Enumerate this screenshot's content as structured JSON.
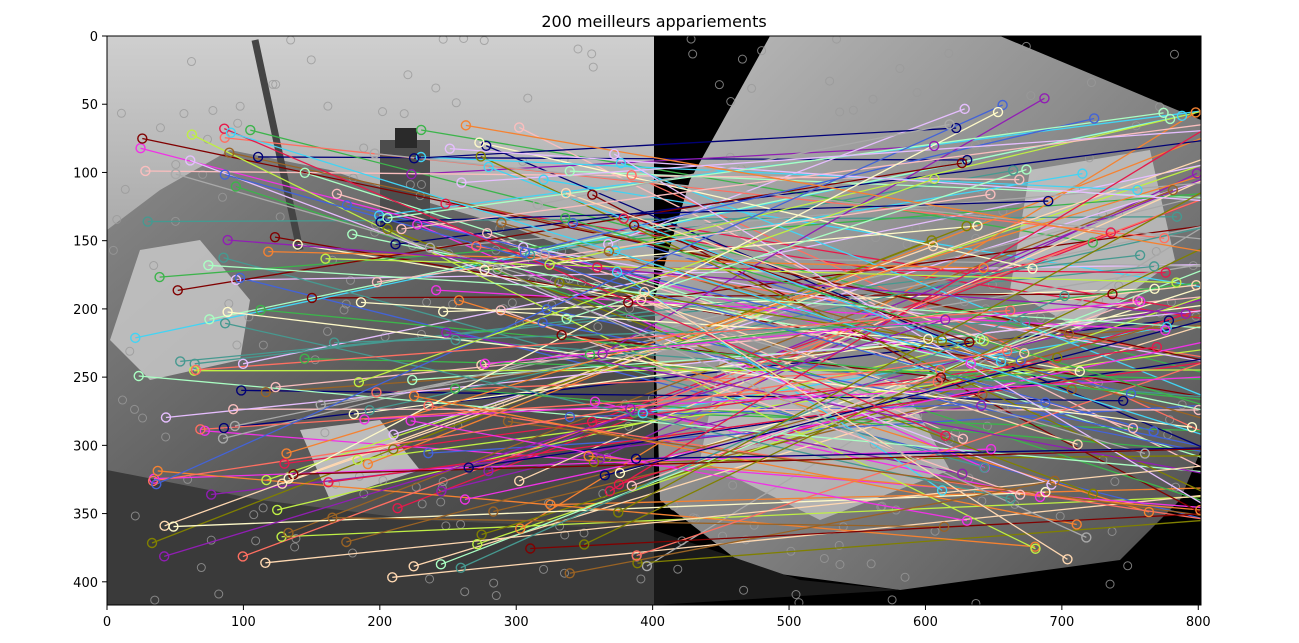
{
  "chart_data": {
    "type": "image",
    "title": "200 meilleurs appariements",
    "xlabel": "",
    "ylabel": "",
    "xlim": [
      0,
      802
    ],
    "ylim": [
      417,
      0
    ],
    "x_ticks": [
      0,
      100,
      200,
      300,
      400,
      500,
      600,
      700,
      800
    ],
    "y_ticks": [
      0,
      50,
      100,
      150,
      200,
      250,
      300,
      350,
      400
    ],
    "x_tick_labels": [
      "0",
      "100",
      "200",
      "300",
      "400",
      "500",
      "600",
      "700",
      "800"
    ],
    "y_tick_labels": [
      "0",
      "50",
      "100",
      "150",
      "200",
      "250",
      "300",
      "350",
      "400"
    ],
    "left_image_width": 401,
    "num_matches": 200,
    "colors": {
      "background": "#ffffff",
      "panel_black": "#000000",
      "match_palette": [
        "#e6194b",
        "#3cb44b",
        "#4363d8",
        "#f58231",
        "#911eb4",
        "#42d4f4",
        "#f032e6",
        "#bfef45",
        "#fabebe",
        "#469990",
        "#e6beff",
        "#9a6324",
        "#fffac8",
        "#800000",
        "#aaffc3",
        "#808000",
        "#ffd8b1",
        "#000075",
        "#a9a9a9",
        "#ff6f61"
      ]
    }
  }
}
